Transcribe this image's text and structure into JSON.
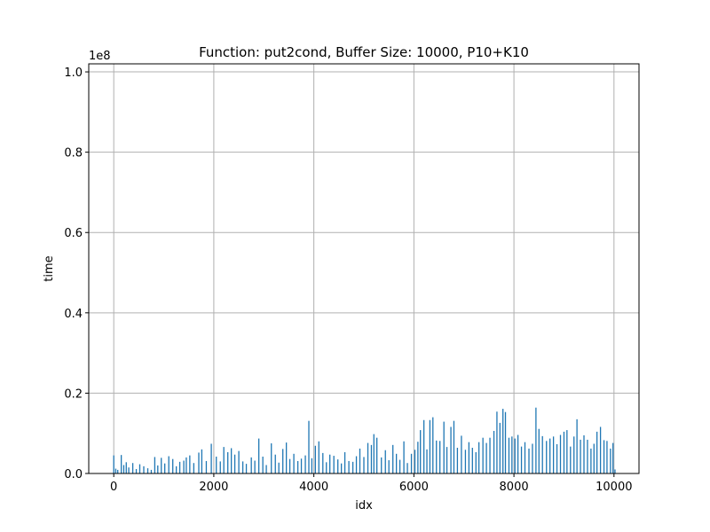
{
  "chart_data": {
    "type": "bar",
    "title": "Function: put2cond, Buffer Size: 10000, P10+K10",
    "xlabel": "idx",
    "ylabel": "time",
    "y_scale_label": "1e8",
    "xlim": [
      -500,
      10500
    ],
    "ylim": [
      0,
      102000000.0
    ],
    "x_ticks": [
      0,
      2000,
      4000,
      6000,
      8000,
      10000
    ],
    "x_tick_labels": [
      "0",
      "2000",
      "4000",
      "6000",
      "8000",
      "10000"
    ],
    "y_ticks": [
      0,
      20000000,
      40000000,
      60000000,
      80000000,
      100000000
    ],
    "y_tick_labels": [
      "0.0",
      "0.2",
      "0.4",
      "0.6",
      "0.8",
      "1.0"
    ],
    "grid": true,
    "bar_color": "#1f77b4",
    "series": [
      {
        "values": [
          [
            0,
            4500000
          ],
          [
            40,
            1200000
          ],
          [
            80,
            900000
          ],
          [
            150,
            4600000
          ],
          [
            200,
            2100000
          ],
          [
            250,
            2800000
          ],
          [
            300,
            1500000
          ],
          [
            380,
            2600000
          ],
          [
            450,
            1100000
          ],
          [
            520,
            2300000
          ],
          [
            600,
            1800000
          ],
          [
            680,
            1300000
          ],
          [
            750,
            900000
          ],
          [
            820,
            4100000
          ],
          [
            880,
            2000000
          ],
          [
            950,
            3900000
          ],
          [
            1020,
            2500000
          ],
          [
            1100,
            4300000
          ],
          [
            1180,
            3600000
          ],
          [
            1250,
            1800000
          ],
          [
            1320,
            2900000
          ],
          [
            1400,
            3200000
          ],
          [
            1450,
            4000000
          ],
          [
            1520,
            4500000
          ],
          [
            1600,
            2600000
          ],
          [
            1700,
            5200000
          ],
          [
            1760,
            6000000
          ],
          [
            1850,
            3100000
          ],
          [
            1950,
            7400000
          ],
          [
            2050,
            4200000
          ],
          [
            2130,
            3000000
          ],
          [
            2200,
            6600000
          ],
          [
            2280,
            5300000
          ],
          [
            2350,
            6300000
          ],
          [
            2420,
            4700000
          ],
          [
            2500,
            5600000
          ],
          [
            2580,
            3000000
          ],
          [
            2650,
            2400000
          ],
          [
            2750,
            4000000
          ],
          [
            2820,
            3200000
          ],
          [
            2900,
            8700000
          ],
          [
            2980,
            4200000
          ],
          [
            3050,
            2100000
          ],
          [
            3150,
            7500000
          ],
          [
            3230,
            4700000
          ],
          [
            3300,
            2700000
          ],
          [
            3380,
            6100000
          ],
          [
            3450,
            7700000
          ],
          [
            3520,
            3600000
          ],
          [
            3600,
            4900000
          ],
          [
            3680,
            3100000
          ],
          [
            3750,
            3700000
          ],
          [
            3830,
            4500000
          ],
          [
            3900,
            13100000
          ],
          [
            3960,
            3800000
          ],
          [
            4030,
            6900000
          ],
          [
            4100,
            8000000
          ],
          [
            4180,
            5100000
          ],
          [
            4250,
            2800000
          ],
          [
            4320,
            4700000
          ],
          [
            4400,
            4400000
          ],
          [
            4480,
            3500000
          ],
          [
            4550,
            2500000
          ],
          [
            4620,
            5300000
          ],
          [
            4700,
            3100000
          ],
          [
            4780,
            2900000
          ],
          [
            4850,
            4300000
          ],
          [
            4920,
            6200000
          ],
          [
            5000,
            4100000
          ],
          [
            5080,
            7600000
          ],
          [
            5150,
            7100000
          ],
          [
            5200,
            9800000
          ],
          [
            5260,
            8900000
          ],
          [
            5350,
            4000000
          ],
          [
            5430,
            5800000
          ],
          [
            5500,
            3300000
          ],
          [
            5580,
            7100000
          ],
          [
            5650,
            4900000
          ],
          [
            5720,
            3400000
          ],
          [
            5800,
            8000000
          ],
          [
            5870,
            2600000
          ],
          [
            5950,
            4900000
          ],
          [
            6020,
            5900000
          ],
          [
            6080,
            7900000
          ],
          [
            6130,
            10800000
          ],
          [
            6200,
            13300000
          ],
          [
            6260,
            6000000
          ],
          [
            6320,
            13300000
          ],
          [
            6380,
            14000000
          ],
          [
            6450,
            8200000
          ],
          [
            6520,
            8100000
          ],
          [
            6600,
            12900000
          ],
          [
            6660,
            6600000
          ],
          [
            6740,
            11600000
          ],
          [
            6800,
            13100000
          ],
          [
            6870,
            6400000
          ],
          [
            6950,
            9400000
          ],
          [
            7030,
            5900000
          ],
          [
            7100,
            7800000
          ],
          [
            7170,
            6400000
          ],
          [
            7240,
            5300000
          ],
          [
            7300,
            7800000
          ],
          [
            7380,
            8900000
          ],
          [
            7450,
            7600000
          ],
          [
            7520,
            8900000
          ],
          [
            7600,
            10600000
          ],
          [
            7660,
            15400000
          ],
          [
            7720,
            12600000
          ],
          [
            7780,
            16100000
          ],
          [
            7830,
            15300000
          ],
          [
            7900,
            8900000
          ],
          [
            7960,
            9200000
          ],
          [
            8020,
            8700000
          ],
          [
            8080,
            9600000
          ],
          [
            8150,
            6700000
          ],
          [
            8220,
            7800000
          ],
          [
            8300,
            6200000
          ],
          [
            8370,
            7400000
          ],
          [
            8440,
            16400000
          ],
          [
            8500,
            11100000
          ],
          [
            8570,
            9300000
          ],
          [
            8650,
            8100000
          ],
          [
            8720,
            8700000
          ],
          [
            8790,
            9200000
          ],
          [
            8860,
            7300000
          ],
          [
            8930,
            9600000
          ],
          [
            9000,
            10400000
          ],
          [
            9060,
            10800000
          ],
          [
            9130,
            6700000
          ],
          [
            9200,
            9200000
          ],
          [
            9260,
            13500000
          ],
          [
            9330,
            8400000
          ],
          [
            9400,
            9500000
          ],
          [
            9470,
            8400000
          ],
          [
            9540,
            6200000
          ],
          [
            9600,
            7400000
          ],
          [
            9660,
            10400000
          ],
          [
            9730,
            11600000
          ],
          [
            9800,
            8300000
          ],
          [
            9860,
            8100000
          ],
          [
            9930,
            6200000
          ],
          [
            9980,
            7600000
          ],
          [
            10020,
            1000000
          ]
        ]
      }
    ]
  }
}
